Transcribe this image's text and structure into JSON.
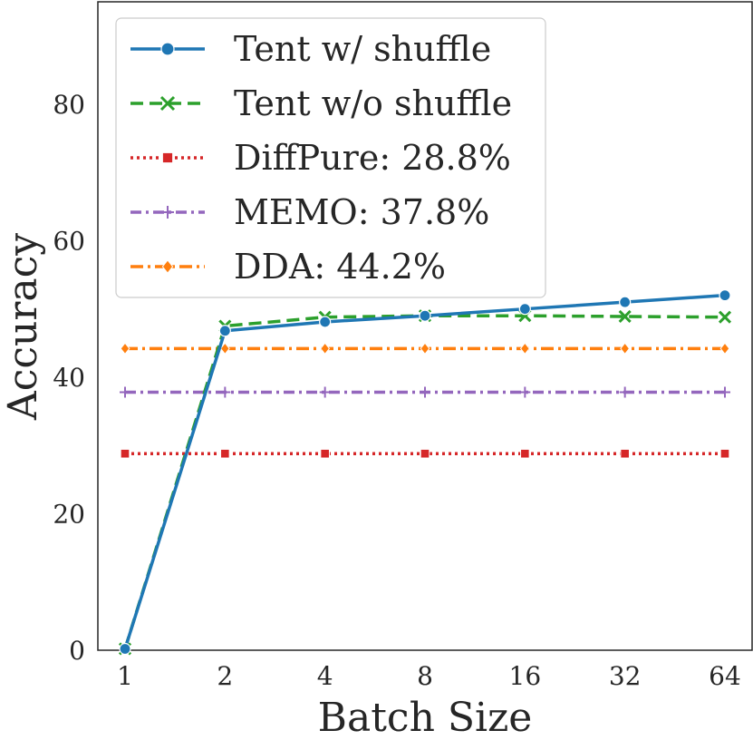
{
  "chart_data": {
    "type": "line",
    "title": "",
    "xlabel": "Batch Size",
    "ylabel": "Accuracy",
    "categories": [
      "1",
      "2",
      "4",
      "8",
      "16",
      "32",
      "64"
    ],
    "ylim": [
      0,
      95
    ],
    "yticks": [
      0,
      20,
      40,
      60,
      80
    ],
    "grid": false,
    "legend_position": "top-left",
    "series": [
      {
        "name": "Tent w/ shuffle",
        "values": [
          0.2,
          46.8,
          48.1,
          49.0,
          50.0,
          51.0,
          52.0
        ],
        "color": "#1f77b4",
        "dash": "solid",
        "marker": "circle"
      },
      {
        "name": "Tent w/o shuffle",
        "values": [
          0.2,
          47.5,
          48.8,
          49.0,
          49.0,
          48.9,
          48.8
        ],
        "color": "#2ca02c",
        "dash": "dashed",
        "marker": "x"
      },
      {
        "name": "DiffPure: 28.8%",
        "values": [
          28.8,
          28.8,
          28.8,
          28.8,
          28.8,
          28.8,
          28.8
        ],
        "color": "#d62728",
        "dash": "dotted",
        "marker": "square"
      },
      {
        "name": "MEMO: 37.8%",
        "values": [
          37.8,
          37.8,
          37.8,
          37.8,
          37.8,
          37.8,
          37.8
        ],
        "color": "#9467bd",
        "dash": "dashdot-thin",
        "marker": "plus"
      },
      {
        "name": "DDA: 44.2%",
        "values": [
          44.2,
          44.2,
          44.2,
          44.2,
          44.2,
          44.2,
          44.2
        ],
        "color": "#ff7f0e",
        "dash": "dashdot",
        "marker": "diamond"
      }
    ]
  }
}
